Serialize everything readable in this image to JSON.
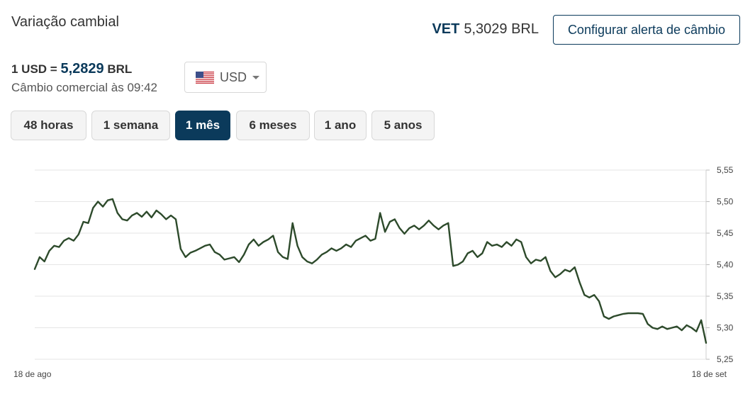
{
  "header": {
    "title": "Variação cambial",
    "vet_label": "VET",
    "vet_value": "5,3029 BRL",
    "alert_button": "Configurar alerta de câmbio"
  },
  "rate": {
    "prefix": "1 USD =",
    "value": "5,2829",
    "currency": "BRL",
    "subtitle": "Câmbio comercial às 09:42"
  },
  "currency_select": {
    "selected": "USD",
    "icon": "us-flag-icon"
  },
  "period_tabs": [
    {
      "label": "48 horas",
      "active": false
    },
    {
      "label": "1 semana",
      "active": false
    },
    {
      "label": "1 mês",
      "active": true
    },
    {
      "label": "6 meses",
      "active": false
    },
    {
      "label": "1 ano",
      "active": false
    },
    {
      "label": "5 anos",
      "active": false
    }
  ],
  "colors": {
    "accent": "#0b3a5b",
    "line": "#2d4a2b",
    "grid": "#e6e6e6"
  },
  "chart_data": {
    "type": "line",
    "title": "",
    "xlabel": "",
    "ylabel": "",
    "x_start_label": "18 de ago",
    "x_end_label": "18 de set",
    "ylim": [
      5.25,
      5.55
    ],
    "y_ticks": [
      "5,55",
      "5,50",
      "5,45",
      "5,40",
      "5,35",
      "5,30",
      "5,25"
    ],
    "grid": true,
    "series": [
      {
        "values": [
          5.393,
          5.412,
          5.405,
          5.422,
          5.43,
          5.428,
          5.438,
          5.442,
          5.438,
          5.448,
          5.468,
          5.466,
          5.49,
          5.5,
          5.492,
          5.502,
          5.504,
          5.482,
          5.472,
          5.47,
          5.478,
          5.482,
          5.476,
          5.484,
          5.475,
          5.486,
          5.48,
          5.472,
          5.478,
          5.472,
          5.425,
          5.412,
          5.419,
          5.422,
          5.426,
          5.43,
          5.432,
          5.42,
          5.416,
          5.408,
          5.41,
          5.412,
          5.404,
          5.416,
          5.432,
          5.44,
          5.43,
          5.436,
          5.44,
          5.446,
          5.42,
          5.412,
          5.409,
          5.466,
          5.43,
          5.412,
          5.405,
          5.402,
          5.408,
          5.416,
          5.42,
          5.426,
          5.422,
          5.426,
          5.432,
          5.428,
          5.438,
          5.442,
          5.446,
          5.438,
          5.441,
          5.482,
          5.452,
          5.468,
          5.472,
          5.458,
          5.449,
          5.458,
          5.462,
          5.456,
          5.462,
          5.47,
          5.462,
          5.456,
          5.462,
          5.466,
          5.398,
          5.4,
          5.405,
          5.418,
          5.422,
          5.412,
          5.418,
          5.436,
          5.43,
          5.432,
          5.428,
          5.436,
          5.43,
          5.44,
          5.436,
          5.412,
          5.402,
          5.408,
          5.406,
          5.412,
          5.39,
          5.38,
          5.385,
          5.392,
          5.389,
          5.396,
          5.372,
          5.352,
          5.348,
          5.352,
          5.342,
          5.318,
          5.314,
          5.318,
          5.32,
          5.322,
          5.323,
          5.323,
          5.323,
          5.322,
          5.306,
          5.3,
          5.298,
          5.302,
          5.298,
          5.3,
          5.302,
          5.296,
          5.304,
          5.3,
          5.294,
          5.312,
          5.276
        ]
      }
    ]
  }
}
